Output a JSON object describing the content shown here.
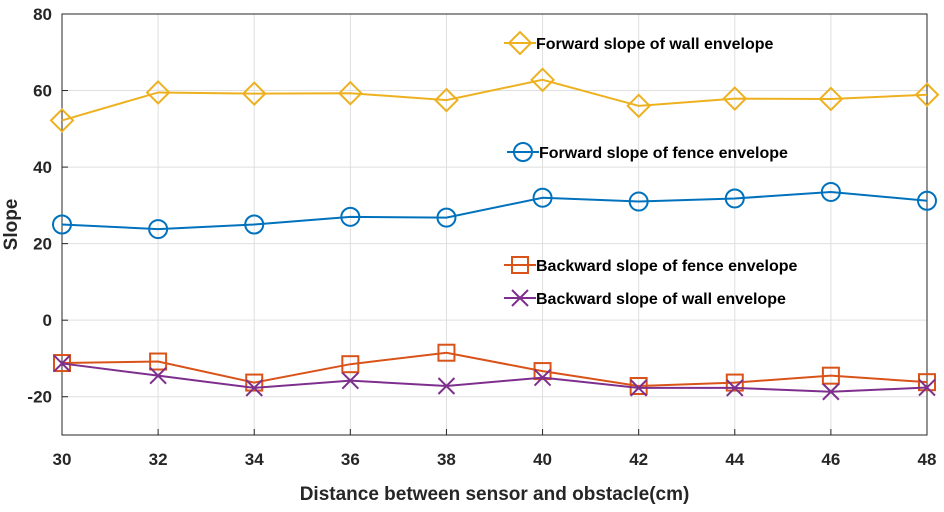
{
  "chart_data": {
    "type": "line",
    "title": "",
    "xlabel": "Distance between sensor and obstacle(cm)",
    "ylabel": "Slope",
    "xlim": [
      30,
      48
    ],
    "ylim": [
      -30,
      80
    ],
    "x_ticks": [
      30,
      32,
      34,
      36,
      38,
      40,
      42,
      44,
      46,
      48
    ],
    "y_ticks": [
      -20,
      0,
      20,
      40,
      60,
      80
    ],
    "grid": true,
    "x": [
      30,
      32,
      34,
      36,
      38,
      40,
      42,
      44,
      46,
      48
    ],
    "series": [
      {
        "name": "Forward slope of wall envelope",
        "color": "#EDB120",
        "marker": "diamond",
        "values": [
          52.2,
          59.5,
          59.2,
          59.3,
          57.5,
          62.8,
          56.0,
          57.9,
          57.8,
          58.9
        ]
      },
      {
        "name": "Forward slope of fence envelope",
        "color": "#0072BD",
        "marker": "circle",
        "values": [
          25.0,
          23.8,
          25.0,
          27.0,
          26.8,
          32.0,
          31.0,
          31.8,
          33.5,
          31.2
        ]
      },
      {
        "name": "Backward slope of fence envelope",
        "color": "#D95319",
        "marker": "square",
        "values": [
          -11.2,
          -10.8,
          -16.3,
          -11.5,
          -8.5,
          -13.3,
          -17.2,
          -16.3,
          -14.5,
          -16.2
        ]
      },
      {
        "name": "Backward slope of wall envelope",
        "color": "#7E2F8E",
        "marker": "x",
        "values": [
          -11.3,
          -14.5,
          -17.7,
          -15.8,
          -17.2,
          -15.0,
          -17.7,
          -17.7,
          -18.7,
          -17.6
        ]
      }
    ]
  }
}
